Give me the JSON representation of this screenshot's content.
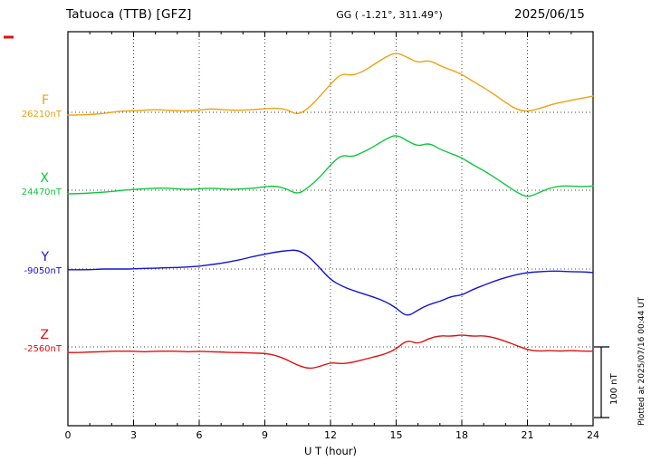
{
  "header": {
    "station": "Tatuoca (TTB)  [GFZ]",
    "coords": "GG ( -1.21°, 311.49°)",
    "date": "2025/06/15"
  },
  "side_note": "Plotted at 2025/07/16 00:44 UT",
  "xaxis": {
    "label": "U T (hour)",
    "ticks": [
      "0",
      "3",
      "6",
      "9",
      "12",
      "15",
      "18",
      "21",
      "24"
    ],
    "min": 0,
    "max": 24
  },
  "scale_bar": {
    "label": "100 nT",
    "nT": 100
  },
  "chart_data": {
    "type": "line",
    "title": "Tatuoca (TTB) [GFZ] magnetogram 2025/06/15",
    "xlabel": "U T (hour)",
    "x_start": 0,
    "x_step": 0.5,
    "x_end": 24,
    "grid": "dotted vertical every 3 h, dotted horizontal at each baseline",
    "series": [
      {
        "name": "F",
        "baseline_label": "26210nT",
        "baseline_nT": 26210,
        "color": "#eda211",
        "offsets_nT": [
          -4,
          -4,
          -3,
          -2,
          0,
          2,
          2,
          3,
          4,
          3,
          2,
          2,
          3,
          5,
          4,
          3,
          3,
          4,
          5,
          6,
          4,
          -4,
          6,
          22,
          40,
          55,
          52,
          58,
          68,
          78,
          85,
          78,
          70,
          74,
          66,
          60,
          54,
          44,
          35,
          25,
          14,
          4,
          1,
          5,
          10,
          14,
          17,
          20,
          23
        ]
      },
      {
        "name": "X",
        "baseline_label": "24470nT",
        "baseline_nT": 24470,
        "color": "#0dc83c",
        "offsets_nT": [
          -5,
          -5,
          -4,
          -3,
          -2,
          0,
          1,
          2,
          3,
          3,
          2,
          1,
          2,
          3,
          2,
          1,
          2,
          3,
          5,
          6,
          2,
          -6,
          4,
          18,
          36,
          50,
          47,
          54,
          62,
          72,
          79,
          70,
          62,
          67,
          58,
          52,
          46,
          36,
          28,
          18,
          8,
          -3,
          -10,
          -4,
          3,
          6,
          6,
          5,
          6
        ]
      },
      {
        "name": "Y",
        "baseline_label": "-9050nT",
        "baseline_nT": -9050,
        "color": "#1414cc",
        "offsets_nT": [
          -1,
          -1,
          -1,
          0,
          0,
          0,
          0,
          1,
          1,
          2,
          2,
          3,
          4,
          6,
          8,
          11,
          14,
          18,
          21,
          24,
          26,
          27,
          18,
          2,
          -15,
          -24,
          -30,
          -35,
          -40,
          -46,
          -55,
          -68,
          -58,
          -50,
          -46,
          -39,
          -37,
          -29,
          -23,
          -17,
          -12,
          -8,
          -5,
          -4,
          -3,
          -3,
          -4,
          -4,
          -5
        ]
      },
      {
        "name": "Z",
        "baseline_label": "-2560nT",
        "baseline_nT": -2560,
        "color": "#dd1111",
        "offsets_nT": [
          -8,
          -8,
          -7,
          -7,
          -6,
          -6,
          -6,
          -7,
          -6,
          -6,
          -6,
          -7,
          -6,
          -7,
          -7,
          -8,
          -8,
          -9,
          -9,
          -12,
          -18,
          -26,
          -31,
          -28,
          -22,
          -24,
          -22,
          -18,
          -14,
          -10,
          -3,
          10,
          4,
          12,
          16,
          15,
          17,
          15,
          16,
          13,
          8,
          2,
          -4,
          -6,
          -5,
          -6,
          -5,
          -6,
          -6
        ]
      }
    ]
  }
}
